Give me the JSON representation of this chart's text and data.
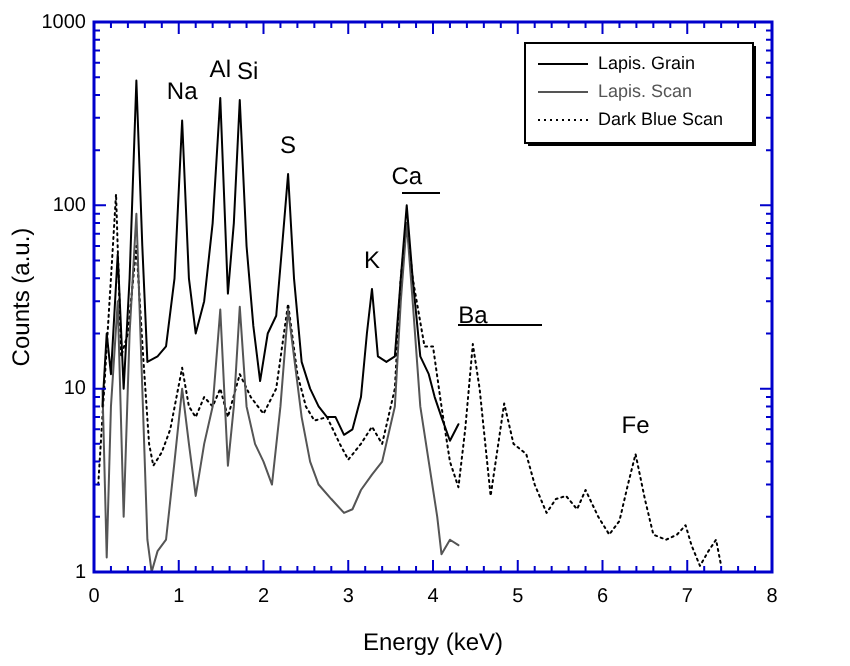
{
  "chart_data": {
    "type": "line",
    "xlabel": "Energy (keV)",
    "ylabel": "Counts (a.u.)",
    "log": true,
    "grid": false,
    "legend": "top right",
    "xlim": [
      0,
      8
    ],
    "ylim": [
      1,
      1000
    ],
    "xticks": [
      0,
      {
        "value": 0.2,
        "label": null
      },
      {
        "value": 0.4,
        "label": null
      },
      {
        "value": 0.6,
        "label": null
      },
      {
        "value": 0.8,
        "label": null
      },
      1,
      {
        "value": 1.2,
        "label": null
      },
      {
        "value": 1.4,
        "label": null
      },
      {
        "value": 1.6,
        "label": null
      },
      {
        "value": 1.8,
        "label": null
      },
      2,
      {
        "value": 2.2,
        "label": null
      },
      {
        "value": 2.4,
        "label": null
      },
      {
        "value": 2.6,
        "label": null
      },
      {
        "value": 2.8,
        "label": null
      },
      3,
      {
        "value": 3.2,
        "label": null
      },
      {
        "value": 3.4,
        "label": null
      },
      {
        "value": 3.6,
        "label": null
      },
      {
        "value": 3.8,
        "label": null
      },
      4,
      {
        "value": 4.2,
        "label": null
      },
      {
        "value": 4.4,
        "label": null
      },
      {
        "value": 4.6,
        "label": null
      },
      {
        "value": 4.8,
        "label": null
      },
      5,
      {
        "value": 5.2,
        "label": null
      },
      {
        "value": 5.4,
        "label": null
      },
      {
        "value": 5.6,
        "label": null
      },
      {
        "value": 5.8,
        "label": null
      },
      6,
      {
        "value": 6.2,
        "label": null
      },
      {
        "value": 6.4,
        "label": null
      },
      {
        "value": 6.6,
        "label": null
      },
      {
        "value": 6.8,
        "label": null
      },
      7,
      {
        "value": 7.2,
        "label": null
      },
      {
        "value": 7.4,
        "label": null
      },
      {
        "value": 7.6,
        "label": null
      },
      {
        "value": 7.8,
        "label": null
      },
      8
    ],
    "yticks": [
      1,
      {
        "value": 2,
        "label": null
      },
      {
        "value": 3,
        "label": null
      },
      {
        "value": 4,
        "label": null
      },
      {
        "value": 5,
        "label": null
      },
      {
        "value": 6,
        "label": null
      },
      {
        "value": 7,
        "label": null
      },
      {
        "value": 8,
        "label": null
      },
      {
        "value": 9,
        "label": null
      },
      10,
      {
        "value": 20,
        "label": null
      },
      {
        "value": 30,
        "label": null
      },
      {
        "value": 40,
        "label": null
      },
      {
        "value": 50,
        "label": null
      },
      {
        "value": 60,
        "label": null
      },
      {
        "value": 70,
        "label": null
      },
      {
        "value": 80,
        "label": null
      },
      {
        "value": 90,
        "label": null
      },
      100,
      {
        "value": 200,
        "label": null
      },
      {
        "value": 300,
        "label": null
      },
      {
        "value": 400,
        "label": null
      },
      {
        "value": 500,
        "label": null
      },
      {
        "value": 600,
        "label": null
      },
      {
        "value": 700,
        "label": null
      },
      {
        "value": 800,
        "label": null
      },
      {
        "value": 900,
        "label": null
      },
      1000
    ],
    "series": [
      {
        "name": "Lapis. Grain",
        "color": "#000000",
        "line_style": "solid",
        "x": [
          0.1,
          0.15,
          0.2,
          0.28,
          0.35,
          0.42,
          0.5,
          0.57,
          0.63,
          0.75,
          0.85,
          0.95,
          1.04,
          1.12,
          1.2,
          1.3,
          1.4,
          1.49,
          1.58,
          1.65,
          1.72,
          1.8,
          1.88,
          1.96,
          2.05,
          2.15,
          2.22,
          2.29,
          2.36,
          2.45,
          2.55,
          2.65,
          2.75,
          2.85,
          2.95,
          3.05,
          3.15,
          3.22,
          3.28,
          3.35,
          3.45,
          3.55,
          3.62,
          3.69,
          3.76,
          3.85,
          3.95,
          4.02,
          4.1,
          4.2,
          4.3
        ],
        "values": [
          8,
          20,
          12,
          54,
          10,
          40,
          480,
          60,
          14,
          15,
          17,
          40,
          290,
          40,
          20,
          30,
          80,
          385,
          33,
          80,
          375,
          60,
          22,
          11,
          20,
          25,
          60,
          148,
          40,
          14,
          10,
          8,
          7,
          7,
          5.6,
          6,
          9,
          20,
          35,
          15,
          14,
          15,
          40,
          100,
          40,
          15,
          12,
          9,
          7,
          5.2,
          6.4
        ]
      },
      {
        "name": "Lapis. Scan",
        "color": "#555555",
        "line_style": "solid",
        "x": [
          0.1,
          0.15,
          0.2,
          0.28,
          0.35,
          0.42,
          0.5,
          0.57,
          0.63,
          0.68,
          0.75,
          0.85,
          0.95,
          1.04,
          1.12,
          1.2,
          1.3,
          1.4,
          1.49,
          1.58,
          1.65,
          1.72,
          1.8,
          1.9,
          2.0,
          2.1,
          2.2,
          2.29,
          2.36,
          2.45,
          2.55,
          2.65,
          2.8,
          2.95,
          3.05,
          3.15,
          3.28,
          3.4,
          3.55,
          3.62,
          3.69,
          3.76,
          3.85,
          3.95,
          4.05,
          4.1,
          4.2,
          4.3
        ],
        "values": [
          10,
          1.2,
          8,
          30,
          2,
          20,
          90,
          10,
          1.5,
          1,
          1.3,
          1.5,
          4,
          10,
          5,
          2.6,
          5,
          8,
          27,
          3.8,
          8,
          28,
          8,
          5,
          4,
          3,
          8,
          27,
          15,
          7,
          4,
          3,
          2.5,
          2.1,
          2.2,
          2.8,
          3.4,
          4,
          8,
          30,
          80,
          30,
          8,
          4,
          2,
          1.25,
          1.5,
          1.4
        ]
      },
      {
        "name": "Dark Blue Scan",
        "color": "#000000",
        "line_style": "dotted",
        "x": [
          0.05,
          0.12,
          0.2,
          0.26,
          0.32,
          0.4,
          0.5,
          0.58,
          0.65,
          0.7,
          0.8,
          0.9,
          1.04,
          1.12,
          1.2,
          1.3,
          1.4,
          1.49,
          1.58,
          1.72,
          1.85,
          2.0,
          2.15,
          2.29,
          2.4,
          2.5,
          2.6,
          2.75,
          2.9,
          3.0,
          3.15,
          3.28,
          3.4,
          3.55,
          3.62,
          3.69,
          3.76,
          3.9,
          4.0,
          4.1,
          4.2,
          4.3,
          4.38,
          4.47,
          4.55,
          4.68,
          4.84,
          4.95,
          5.1,
          5.2,
          5.34,
          5.45,
          5.57,
          5.7,
          5.8,
          5.95,
          6.08,
          6.2,
          6.3,
          6.39,
          6.5,
          6.6,
          6.75,
          6.88,
          6.98,
          7.05,
          7.15,
          7.25,
          7.34,
          7.4
        ],
        "values": [
          3,
          10,
          40,
          115,
          15,
          20,
          60,
          15,
          5,
          3.8,
          4.5,
          6,
          13,
          8,
          7,
          9,
          8,
          10,
          7,
          12,
          9,
          7.3,
          10,
          29,
          12,
          8,
          6.7,
          7,
          5,
          4.1,
          5,
          6.2,
          5,
          10,
          40,
          80,
          40,
          17,
          17,
          8,
          4,
          2.9,
          6,
          17.5,
          10,
          2.6,
          8.3,
          5,
          4.4,
          3,
          2.1,
          2.5,
          2.6,
          2.2,
          2.8,
          2,
          1.6,
          1.9,
          3,
          4.4,
          2.5,
          1.6,
          1.5,
          1.6,
          1.8,
          1.4,
          1.08,
          1.3,
          1.5,
          1.08
        ]
      }
    ],
    "annotations": [
      {
        "text": "Na",
        "x": 1.04,
        "y": 290
      },
      {
        "text": "Al",
        "x": 1.49,
        "y": 385
      },
      {
        "text": "Si",
        "x": 1.72,
        "y": 375
      },
      {
        "text": "S",
        "x": 2.29,
        "y": 148
      },
      {
        "text": "K",
        "x": 3.28,
        "y": 35
      },
      {
        "text": "Ca",
        "x": 3.69,
        "y": 100
      },
      {
        "text": "Ba",
        "x": 4.47,
        "y": 17.5
      },
      {
        "text": "Fe",
        "x": 6.39,
        "y": 4.4
      }
    ]
  }
}
